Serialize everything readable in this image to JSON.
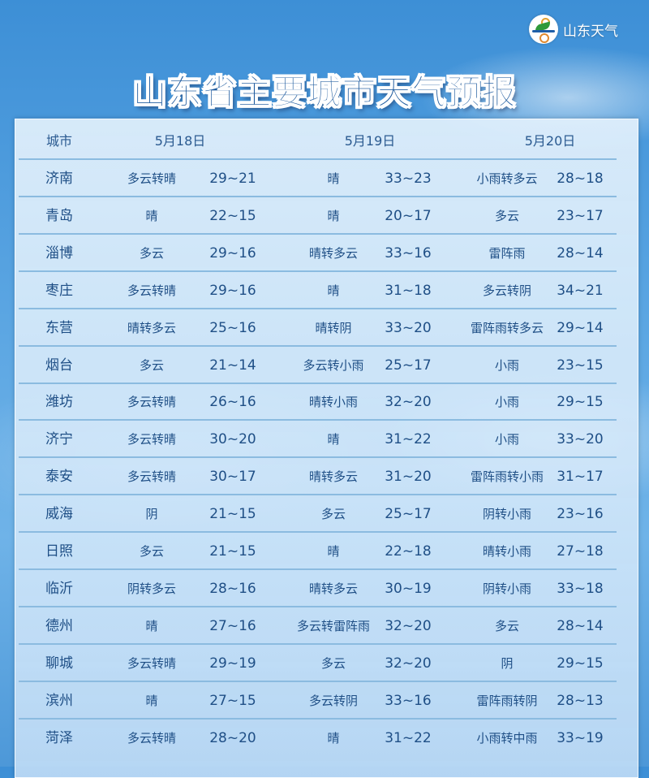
{
  "logo": {
    "text": "山东天气"
  },
  "title": "山东省主要城市天气预报",
  "header": {
    "city": "城市",
    "dates": [
      "5月18日",
      "5月19日",
      "5月20日"
    ]
  },
  "rows": [
    {
      "city": "济南",
      "d1": [
        "多云转晴",
        "29~21"
      ],
      "d2": [
        "晴",
        "33~23"
      ],
      "d3": [
        "小雨转多云",
        "28~18"
      ]
    },
    {
      "city": "青岛",
      "d1": [
        "晴",
        "22~15"
      ],
      "d2": [
        "晴",
        "20~17"
      ],
      "d3": [
        "多云",
        "23~17"
      ]
    },
    {
      "city": "淄博",
      "d1": [
        "多云",
        "29~16"
      ],
      "d2": [
        "晴转多云",
        "33~16"
      ],
      "d3": [
        "雷阵雨",
        "28~14"
      ]
    },
    {
      "city": "枣庄",
      "d1": [
        "多云转晴",
        "29~16"
      ],
      "d2": [
        "晴",
        "31~18"
      ],
      "d3": [
        "多云转阴",
        "34~21"
      ]
    },
    {
      "city": "东营",
      "d1": [
        "晴转多云",
        "25~16"
      ],
      "d2": [
        "晴转阴",
        "33~20"
      ],
      "d3": [
        "雷阵雨转多云",
        "29~14"
      ]
    },
    {
      "city": "烟台",
      "d1": [
        "多云",
        "21~14"
      ],
      "d2": [
        "多云转小雨",
        "25~17"
      ],
      "d3": [
        "小雨",
        "23~15"
      ]
    },
    {
      "city": "潍坊",
      "d1": [
        "多云转晴",
        "26~16"
      ],
      "d2": [
        "晴转小雨",
        "32~20"
      ],
      "d3": [
        "小雨",
        "29~15"
      ]
    },
    {
      "city": "济宁",
      "d1": [
        "多云转晴",
        "30~20"
      ],
      "d2": [
        "晴",
        "31~22"
      ],
      "d3": [
        "小雨",
        "33~20"
      ]
    },
    {
      "city": "泰安",
      "d1": [
        "多云转晴",
        "30~17"
      ],
      "d2": [
        "晴转多云",
        "31~20"
      ],
      "d3": [
        "雷阵雨转小雨",
        "31~17"
      ]
    },
    {
      "city": "威海",
      "d1": [
        "阴",
        "21~15"
      ],
      "d2": [
        "多云",
        "25~17"
      ],
      "d3": [
        "阴转小雨",
        "23~16"
      ]
    },
    {
      "city": "日照",
      "d1": [
        "多云",
        "21~15"
      ],
      "d2": [
        "晴",
        "22~18"
      ],
      "d3": [
        "晴转小雨",
        "27~18"
      ]
    },
    {
      "city": "临沂",
      "d1": [
        "阴转多云",
        "28~16"
      ],
      "d2": [
        "晴转多云",
        "30~19"
      ],
      "d3": [
        "阴转小雨",
        "33~18"
      ]
    },
    {
      "city": "德州",
      "d1": [
        "晴",
        "27~16"
      ],
      "d2": [
        "多云转雷阵雨",
        "32~20"
      ],
      "d3": [
        "多云",
        "28~14"
      ]
    },
    {
      "city": "聊城",
      "d1": [
        "多云转晴",
        "29~19"
      ],
      "d2": [
        "多云",
        "32~20"
      ],
      "d3": [
        "阴",
        "29~15"
      ]
    },
    {
      "city": "滨州",
      "d1": [
        "晴",
        "27~15"
      ],
      "d2": [
        "多云转阴",
        "33~16"
      ],
      "d3": [
        "雷阵雨转阴",
        "28~13"
      ]
    },
    {
      "city": "菏泽",
      "d1": [
        "多云转晴",
        "28~20"
      ],
      "d2": [
        "晴",
        "31~22"
      ],
      "d3": [
        "小雨转中雨",
        "33~19"
      ]
    }
  ]
}
